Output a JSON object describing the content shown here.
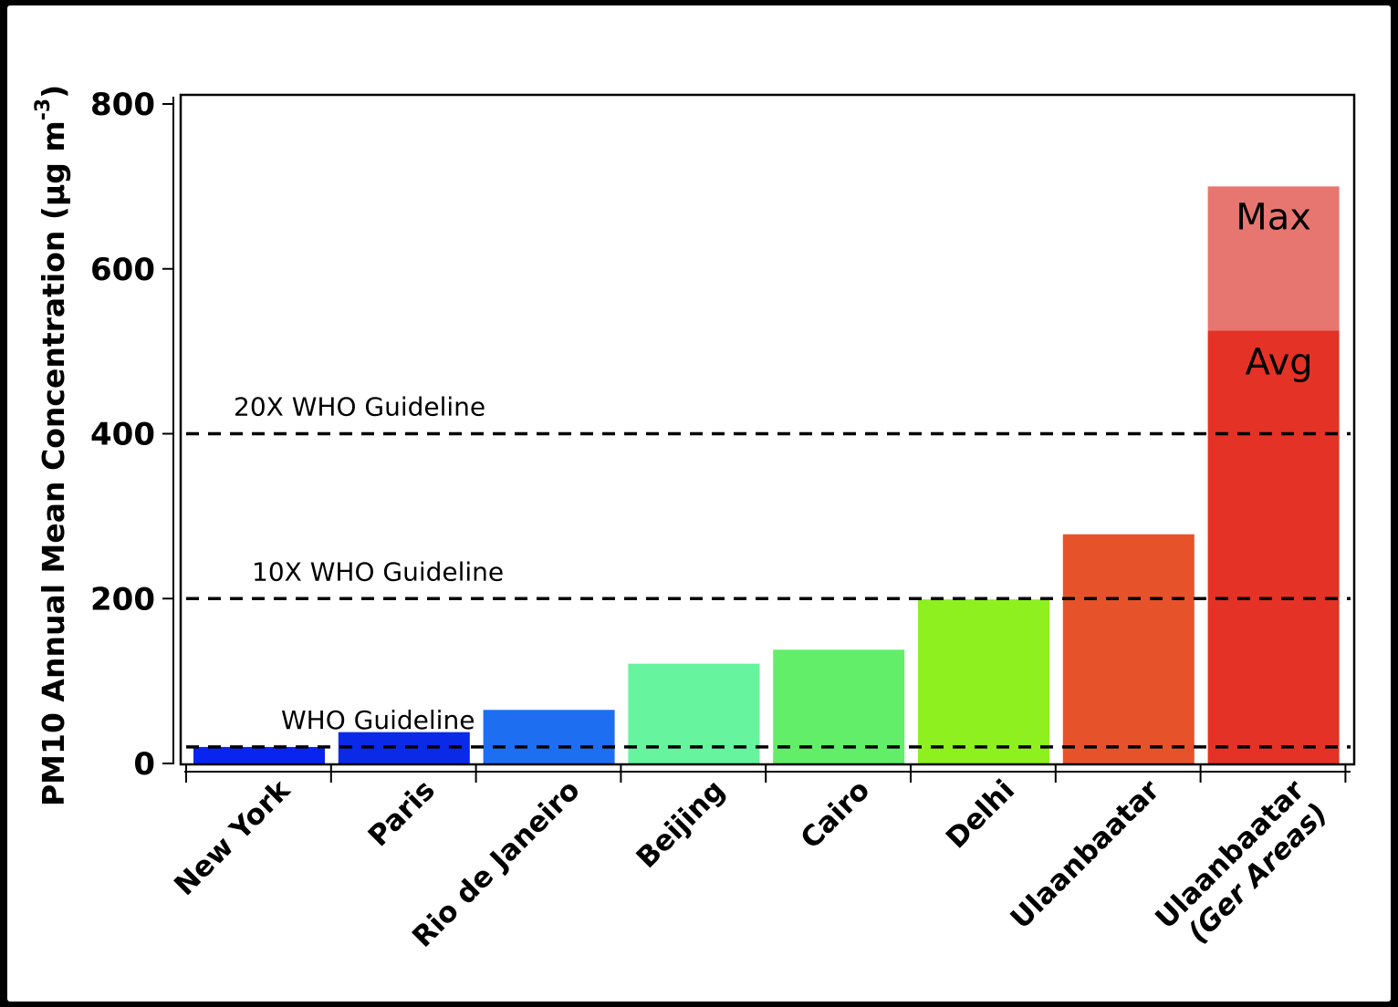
{
  "chart_data": {
    "type": "bar",
    "ylabel_main": "PM10 Annual Mean Concentration (µg m",
    "ylabel_exp": "-3",
    "ylabel_close": ")",
    "ylim": [
      0,
      800
    ],
    "yticks": [
      0,
      200,
      400,
      600,
      800
    ],
    "categories": [
      [
        "New York"
      ],
      [
        "Paris"
      ],
      [
        "Rio de Janeiro"
      ],
      [
        "Beijing"
      ],
      [
        "Cairo"
      ],
      [
        "Delhi"
      ],
      [
        "Ulaanbaatar"
      ],
      [
        "Ulaanbaatar",
        "(Ger Areas)"
      ]
    ],
    "series": [
      {
        "name": "Avg",
        "values": [
          20,
          38,
          65,
          121,
          138,
          199,
          278,
          525
        ]
      },
      {
        "name": "Max",
        "values": [
          null,
          null,
          null,
          null,
          null,
          null,
          null,
          700
        ]
      }
    ],
    "bar_colors": [
      "#0a24f0",
      "#0a2ae8",
      "#1e6ef2",
      "#66f49e",
      "#62ee68",
      "#8ef01e",
      "#e6532a",
      "#e43226"
    ],
    "max_color": "#e87670",
    "reference_lines": [
      {
        "label": "WHO Guideline",
        "value": 20
      },
      {
        "label": "10X WHO Guideline",
        "value": 200
      },
      {
        "label": "20X WHO Guideline",
        "value": 400
      }
    ],
    "grid": false,
    "legend": "none"
  }
}
